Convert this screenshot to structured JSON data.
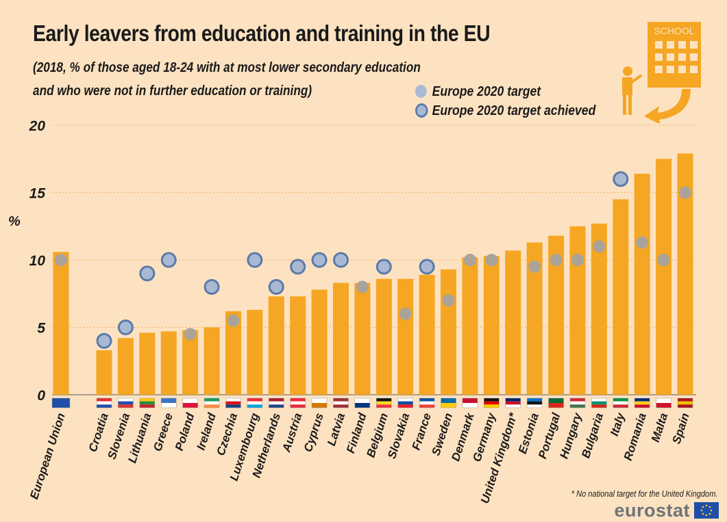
{
  "title": "Early leavers from education and training in the EU",
  "subtitle_line1": "(2018, %  of those aged 18-24 with at most lower secondary education",
  "subtitle_line2": "and who were not in further education or training)",
  "legend": {
    "target": "Europe 2020 target",
    "achieved": "Europe 2020 target achieved"
  },
  "ylabel": "%",
  "footnote": "* No national target for the United Kingdom.",
  "logo": "eurostat",
  "school_sign": "SCHOOL",
  "colors": {
    "bar": "#f5a623",
    "background": "#fde2c1",
    "dot_fill": "#a9b9d3",
    "dot_ring": "#5a7aa8",
    "target_dot": "#a9a39a"
  },
  "chart_data": {
    "type": "bar",
    "ylim": [
      0,
      20
    ],
    "yticks": [
      0,
      5,
      10,
      15,
      20
    ],
    "grid": true,
    "categories": [
      "European Union",
      "Croatia",
      "Slovenia",
      "Lithuania",
      "Greece",
      "Poland",
      "Ireland",
      "Czechia",
      "Luxembourg",
      "Netherlands",
      "Austria",
      "Cyprus",
      "Latvia",
      "Finland",
      "Belgium",
      "Slovakia",
      "France",
      "Sweden",
      "Denmark",
      "Germany",
      "United Kingdom*",
      "Estonia",
      "Portugal",
      "Hungary",
      "Bulgaria",
      "Italy",
      "Romania",
      "Malta",
      "Spain"
    ],
    "values": [
      10.6,
      3.3,
      4.2,
      4.6,
      4.7,
      4.8,
      5.0,
      6.2,
      6.3,
      7.3,
      7.3,
      7.8,
      8.3,
      8.3,
      8.6,
      8.6,
      8.9,
      9.3,
      10.2,
      10.3,
      10.7,
      11.3,
      11.8,
      12.5,
      12.7,
      14.5,
      16.4,
      17.5,
      17.9
    ],
    "targets": [
      10,
      4,
      5,
      9,
      10,
      4.5,
      8,
      5.5,
      10,
      8,
      9.5,
      10,
      10,
      8,
      9.5,
      6,
      9.5,
      7,
      10,
      10,
      null,
      9.5,
      10,
      10,
      11,
      16,
      11.3,
      10,
      15
    ],
    "target_achieved": [
      false,
      true,
      true,
      true,
      true,
      false,
      true,
      false,
      true,
      true,
      true,
      true,
      true,
      false,
      true,
      false,
      true,
      false,
      false,
      false,
      false,
      false,
      false,
      false,
      false,
      true,
      false,
      false,
      false
    ]
  }
}
